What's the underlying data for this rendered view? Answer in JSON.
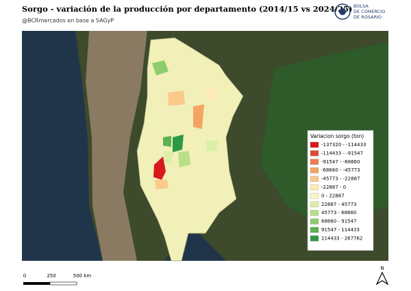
{
  "header": {
    "title": "Sorgo - variación de la producción por departamento (2014/15 vs 2024/25)",
    "subtitle": "@BCRmercados en base a SAGyP",
    "logo_lines": [
      "BOLSA",
      "DE COMERCIO",
      "DE ROSARIO"
    ]
  },
  "legend": {
    "title": "Variacion sorgo (ton)",
    "items": [
      {
        "label": "-137320 - -114433",
        "color": "#d7191c"
      },
      {
        "label": "-114433 - -91547",
        "color": "#e04a35"
      },
      {
        "label": "-91547 - -68660",
        "color": "#ee7d4e"
      },
      {
        "label": "-68660 - -45773",
        "color": "#f5a461"
      },
      {
        "label": "-45773 - -22887",
        "color": "#fbc98a"
      },
      {
        "label": "-22887 - 0",
        "color": "#feeab6"
      },
      {
        "label": "0 - 22887",
        "color": "#f4f7c6"
      },
      {
        "label": "22887 - 45773",
        "color": "#dcefa6"
      },
      {
        "label": "45773 - 68660",
        "color": "#b9df87"
      },
      {
        "label": "68660 - 91547",
        "color": "#8fcc6c"
      },
      {
        "label": "91547 - 114433",
        "color": "#5cb150"
      },
      {
        "label": "114433 - 267762",
        "color": "#2c9a43"
      }
    ]
  },
  "scale_bar": {
    "labels": [
      "0",
      "250",
      "500 km"
    ]
  },
  "north_arrow": {
    "label": "N"
  }
}
